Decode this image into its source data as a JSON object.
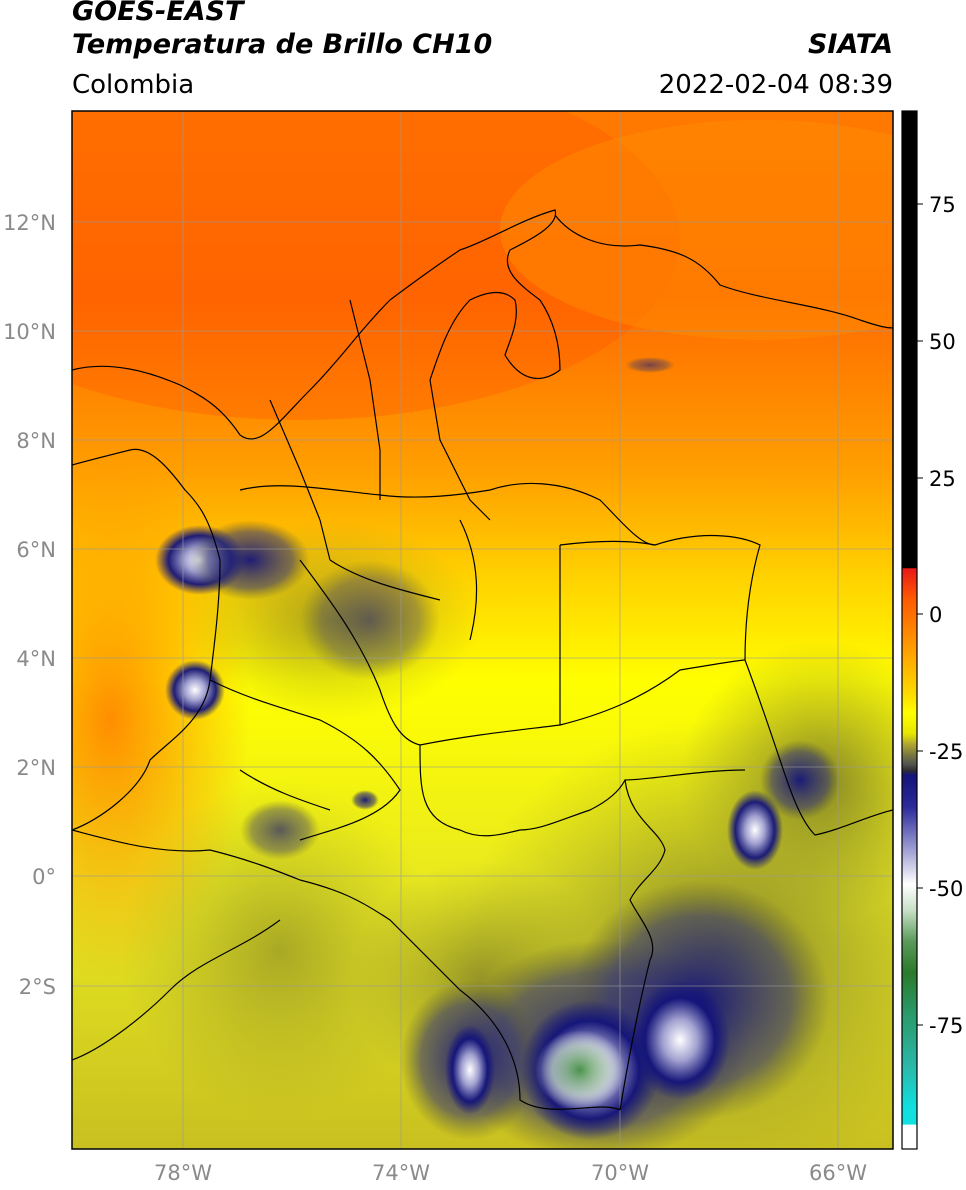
{
  "header": {
    "title_line1": "GOES-EAST",
    "title_line2": "Temperatura de Brillo CH10",
    "agency": "SIATA",
    "region": "Colombia",
    "timestamp": "2022-02-04 08:39"
  },
  "map": {
    "lat_ticks": [
      "12°N",
      "10°N",
      "8°N",
      "6°N",
      "4°N",
      "2°N",
      "0°",
      "2°S"
    ],
    "lon_ticks": [
      "78°W",
      "74°W",
      "70°W",
      "66°W"
    ],
    "gridlines": true
  },
  "colorbar": {
    "tick_labels": [
      "75",
      "50",
      "25",
      "0",
      "-25",
      "-50",
      "-75"
    ],
    "colors": {
      "top_black": "#000000",
      "red": "#e8201a",
      "orange": "#ff8c00",
      "yellow": "#ffff00",
      "olive": "#8c8c20",
      "navy": "#14147a",
      "white": "#ffffff",
      "green": "#3a8a3a",
      "cyan": "#20d8d0"
    }
  }
}
